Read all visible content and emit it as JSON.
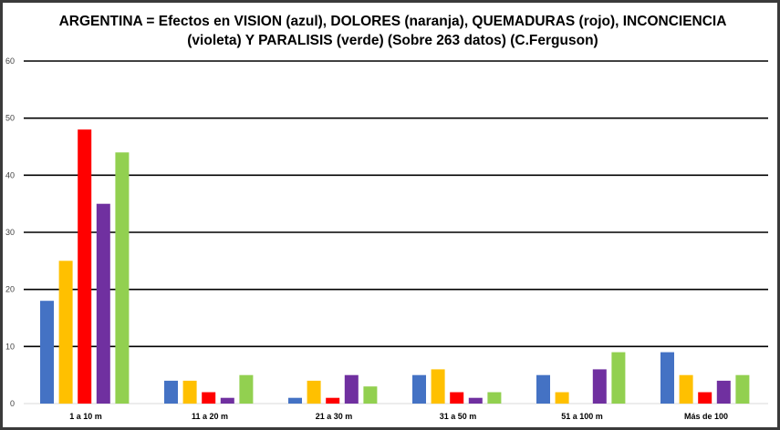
{
  "chart_data": {
    "type": "bar",
    "title": "ARGENTINA = Efectos en VISION (azul), DOLORES (naranja), QUEMADURAS (rojo), INCONCIENCIA (violeta) Y PARALISIS (verde) (Sobre 263 datos) (C.Ferguson)",
    "xlabel": "",
    "ylabel": "",
    "ylim": [
      0,
      60
    ],
    "yticks": [
      0,
      10,
      20,
      30,
      40,
      50,
      60
    ],
    "grid": true,
    "legend": "none",
    "categories": [
      "1 a 10 m",
      "11 a 20 m",
      "21 a 30 m",
      "31 a 50 m",
      "51 a 100 m",
      "Más de 100"
    ],
    "series": [
      {
        "color": "#4472C4",
        "values": [
          18,
          4,
          1,
          5,
          5,
          9
        ]
      },
      {
        "color": "#FFC000",
        "values": [
          25,
          4,
          4,
          6,
          2,
          5
        ]
      },
      {
        "color": "#FF0000",
        "values": [
          48,
          2,
          1,
          2,
          0,
          2
        ]
      },
      {
        "color": "#7030A0",
        "values": [
          35,
          1,
          5,
          1,
          6,
          4
        ]
      },
      {
        "color": "#92D050",
        "values": [
          44,
          5,
          3,
          2,
          9,
          5
        ]
      }
    ]
  }
}
